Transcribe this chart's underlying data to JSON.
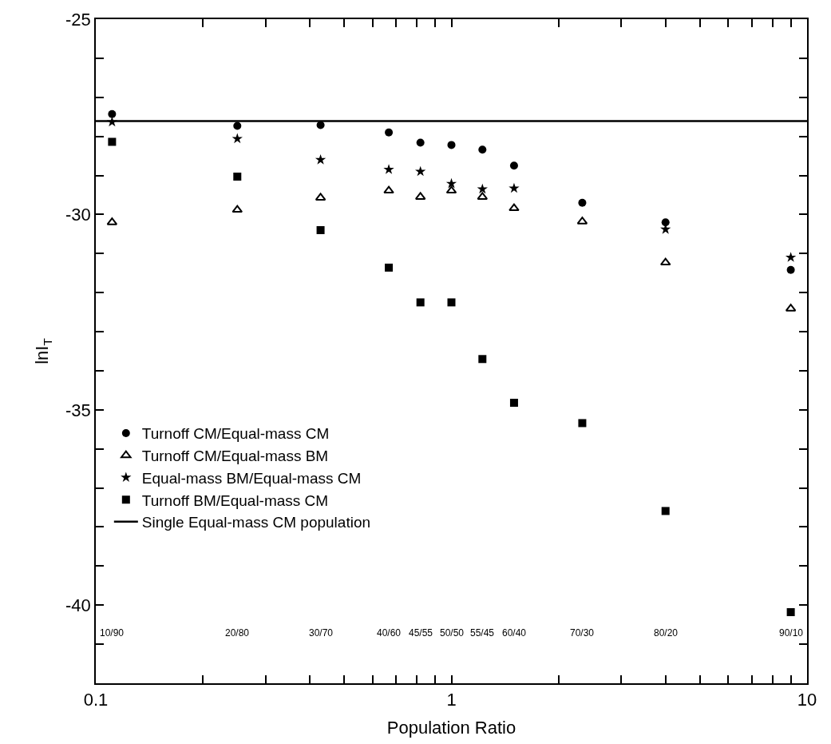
{
  "chart_data": {
    "type": "scatter",
    "xlabel": "Population Ratio",
    "ylabel": "lnI$_{T}$",
    "log": "x",
    "x": [
      0.1111,
      0.25,
      0.4286,
      0.6667,
      0.8182,
      1,
      1.2222,
      1.5,
      2.3333,
      4,
      9
    ],
    "series": [
      {
        "name": "Turnoff CM/Equal-mass CM",
        "color": "#000000",
        "marker": "circle",
        "values": [
          -27.43,
          -27.73,
          -27.71,
          -27.9,
          -28.16,
          -28.22,
          -28.34,
          -28.75,
          -29.7,
          -30.2,
          -31.42
        ]
      },
      {
        "name": "Turnoff CM/Equal-mass BM",
        "color": "#000000",
        "marker": "triangle",
        "values": [
          -30.2,
          -29.88,
          -29.57,
          -29.39,
          -29.55,
          -29.39,
          -29.55,
          -29.84,
          -30.18,
          -31.23,
          -32.41
        ]
      },
      {
        "name": "Equal-mass BM/Equal-mass CM",
        "color": "#000000",
        "marker": "star",
        "values": [
          -27.63,
          -28.06,
          -28.6,
          -28.85,
          -28.9,
          -29.21,
          -29.35,
          -29.33,
          null,
          -30.38,
          -31.1
        ]
      },
      {
        "name": "Turnoff BM/Equal-mass CM",
        "color": "#000000",
        "marker": "square",
        "values": [
          -28.14,
          -29.03,
          -30.4,
          -31.36,
          -32.25,
          -32.25,
          -33.7,
          -34.82,
          -35.34,
          -37.59,
          -40.18
        ]
      },
      {
        "name": "Single Equal-mass CM population",
        "color": "#000000",
        "type": "line",
        "line_style": "solid",
        "x": [
          0.1,
          10
        ],
        "values": [
          -27.61,
          -27.61
        ]
      }
    ],
    "xlim": [
      0.1,
      10
    ],
    "xticks": [
      {
        "value": 0.1,
        "label": "0.1"
      },
      {
        "value": 0.2,
        "label": null
      },
      {
        "value": 0.3,
        "label": null
      },
      {
        "value": 0.4,
        "label": null
      },
      {
        "value": 0.5,
        "label": null
      },
      {
        "value": 0.6,
        "label": null
      },
      {
        "value": 0.7,
        "label": null
      },
      {
        "value": 0.8,
        "label": null
      },
      {
        "value": 0.9,
        "label": null
      },
      1,
      {
        "value": 2,
        "label": null
      },
      {
        "value": 3,
        "label": null
      },
      {
        "value": 4,
        "label": null
      },
      {
        "value": 5,
        "label": null
      },
      {
        "value": 6,
        "label": null
      },
      {
        "value": 7,
        "label": null
      },
      {
        "value": 8,
        "label": null
      },
      {
        "value": 9,
        "label": null
      },
      10
    ],
    "ylim": [
      -42,
      -25
    ],
    "yticks": [
      {
        "value": -42,
        "label": null
      },
      {
        "value": -41,
        "label": null
      },
      -40,
      {
        "value": -39,
        "label": null
      },
      {
        "value": -38,
        "label": null
      },
      {
        "value": -37,
        "label": null
      },
      {
        "value": -36,
        "label": null
      },
      -35,
      {
        "value": -34,
        "label": null
      },
      {
        "value": -33,
        "label": null
      },
      {
        "value": -32,
        "label": null
      },
      {
        "value": -31,
        "label": null
      },
      -30,
      {
        "value": -29,
        "label": null
      },
      {
        "value": -28,
        "label": null
      },
      {
        "value": -27,
        "label": null
      },
      {
        "value": -26,
        "label": null
      },
      -25
    ],
    "annotations": [
      "10/90",
      "20/80",
      "30/70",
      "40/60",
      "45/55",
      "50/50",
      "55/45",
      "60/40",
      "70/30",
      "80/20",
      "90/10"
    ],
    "legend": "bottom left"
  }
}
